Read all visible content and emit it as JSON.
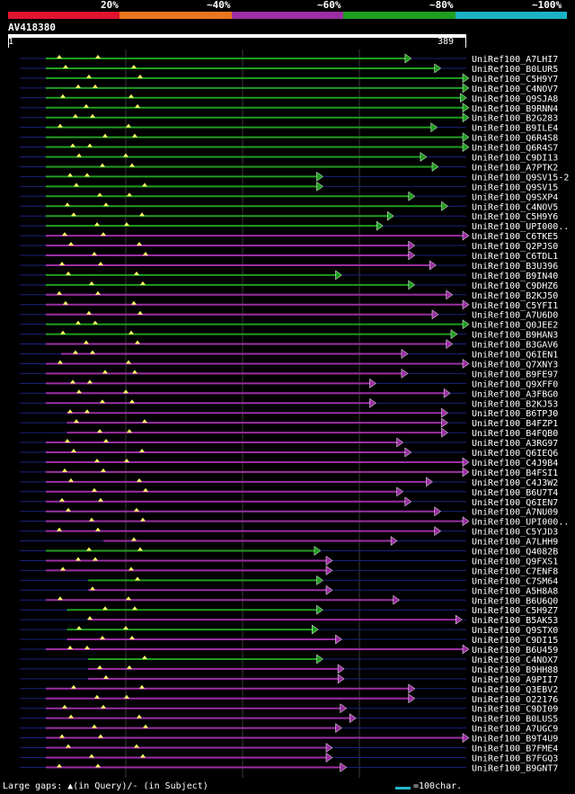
{
  "legend": {
    "labels": [
      "20%",
      "~40%",
      "~60%",
      "~80%",
      "~100%"
    ],
    "colors": [
      "#e0142f",
      "#e8761e",
      "#9b2ea3",
      "#1f9e1f",
      "#1bb3c4"
    ]
  },
  "query": {
    "name": "AV418380",
    "start": "1",
    "end": "389"
  },
  "footer": {
    "gaps_text": "Large gaps: ▲(in Query)/- (in Subject)",
    "scale_text": "=100char."
  },
  "chart_data": {
    "type": "alignment-overview",
    "query_length": 389,
    "colors": {
      "green": "#1f9e1f",
      "purple": "#9b2ea3"
    },
    "hits": [
      {
        "name": "UniRef100_A7LHI7",
        "start": 32,
        "end": 337,
        "color": "green"
      },
      {
        "name": "UniRef100_B0LUR5",
        "start": 32,
        "end": 362,
        "color": "green"
      },
      {
        "name": "UniRef100_C5H9Y7",
        "start": 32,
        "end": 395,
        "color": "green"
      },
      {
        "name": "UniRef100_C4NOV7",
        "start": 32,
        "end": 395,
        "color": "green"
      },
      {
        "name": "UniRef100_Q9SJA8",
        "start": 32,
        "end": 384,
        "color": "green"
      },
      {
        "name": "UniRef100_B9RNN4",
        "start": 32,
        "end": 395,
        "color": "green"
      },
      {
        "name": "UniRef100_B2G283",
        "start": 32,
        "end": 395,
        "color": "green"
      },
      {
        "name": "UniRef100_B9ILE4",
        "start": 32,
        "end": 359,
        "color": "green"
      },
      {
        "name": "UniRef100_Q6R4S8",
        "start": 32,
        "end": 395,
        "color": "green"
      },
      {
        "name": "UniRef100_Q6R4S7",
        "start": 32,
        "end": 395,
        "color": "green"
      },
      {
        "name": "UniRef100_C9DI13",
        "start": 32,
        "end": 350,
        "color": "green"
      },
      {
        "name": "UniRef100_A7PTK2",
        "start": 32,
        "end": 360,
        "color": "green"
      },
      {
        "name": "UniRef100_Q9SV15-2",
        "start": 32,
        "end": 262,
        "color": "green"
      },
      {
        "name": "UniRef100_Q9SV15",
        "start": 32,
        "end": 262,
        "color": "green"
      },
      {
        "name": "UniRef100_Q9SXP4",
        "start": 32,
        "end": 340,
        "color": "green"
      },
      {
        "name": "UniRef100_C4NOV5",
        "start": 32,
        "end": 368,
        "color": "green"
      },
      {
        "name": "UniRef100_C5H9Y6",
        "start": 32,
        "end": 322,
        "color": "green"
      },
      {
        "name": "UniRef100_UPI000..",
        "start": 32,
        "end": 313,
        "color": "green"
      },
      {
        "name": "UniRef100_C6TKE5",
        "start": 32,
        "end": 386,
        "color": "purple"
      },
      {
        "name": "UniRef100_Q2PJS0",
        "start": 32,
        "end": 340,
        "color": "purple"
      },
      {
        "name": "UniRef100_C6TDL1",
        "start": 32,
        "end": 340,
        "color": "purple"
      },
      {
        "name": "UniRef100_B3U396",
        "start": 32,
        "end": 358,
        "color": "purple"
      },
      {
        "name": "UniRef100_B9IN40",
        "start": 32,
        "end": 278,
        "color": "green"
      },
      {
        "name": "UniRef100_C9DHZ6",
        "start": 32,
        "end": 340,
        "color": "green"
      },
      {
        "name": "UniRef100_B2KJ50",
        "start": 32,
        "end": 372,
        "color": "purple"
      },
      {
        "name": "UniRef100_C5YFI1",
        "start": 32,
        "end": 391,
        "color": "purple"
      },
      {
        "name": "UniRef100_A7U6D0",
        "start": 32,
        "end": 360,
        "color": "purple"
      },
      {
        "name": "UniRef100_Q0JEE2",
        "start": 32,
        "end": 388,
        "color": "green"
      },
      {
        "name": "UniRef100_B9HAN3",
        "start": 32,
        "end": 376,
        "color": "green"
      },
      {
        "name": "UniRef100_B3GAV6",
        "start": 32,
        "end": 372,
        "color": "purple"
      },
      {
        "name": "UniRef100_Q6IEN1",
        "start": 45,
        "end": 334,
        "color": "purple"
      },
      {
        "name": "UniRef100_Q7XNY3",
        "start": 32,
        "end": 391,
        "color": "purple"
      },
      {
        "name": "UniRef100_B9FE97",
        "start": 32,
        "end": 334,
        "color": "purple"
      },
      {
        "name": "UniRef100_Q9XFF0",
        "start": 32,
        "end": 307,
        "color": "purple"
      },
      {
        "name": "UniRef100_A3FBG0",
        "start": 32,
        "end": 370,
        "color": "purple"
      },
      {
        "name": "UniRef100_B2KJ53",
        "start": 32,
        "end": 307,
        "color": "purple"
      },
      {
        "name": "UniRef100_B6TPJ0",
        "start": 50,
        "end": 368,
        "color": "purple"
      },
      {
        "name": "UniRef100_B4FZP1",
        "start": 50,
        "end": 368,
        "color": "purple"
      },
      {
        "name": "UniRef100_B4FQB0",
        "start": 50,
        "end": 368,
        "color": "purple"
      },
      {
        "name": "UniRef100_A3RG97",
        "start": 32,
        "end": 330,
        "color": "purple"
      },
      {
        "name": "UniRef100_Q6IEQ6",
        "start": 32,
        "end": 337,
        "color": "purple"
      },
      {
        "name": "UniRef100_C4J9B4",
        "start": 32,
        "end": 393,
        "color": "purple"
      },
      {
        "name": "UniRef100_B4FSI1",
        "start": 32,
        "end": 393,
        "color": "purple"
      },
      {
        "name": "UniRef100_C4J3W2",
        "start": 32,
        "end": 355,
        "color": "purple"
      },
      {
        "name": "UniRef100_B6U7T4",
        "start": 32,
        "end": 330,
        "color": "purple"
      },
      {
        "name": "UniRef100_Q6IEN7",
        "start": 32,
        "end": 337,
        "color": "purple"
      },
      {
        "name": "UniRef100_A7NU09",
        "start": 32,
        "end": 362,
        "color": "purple"
      },
      {
        "name": "UniRef100_UPI000..",
        "start": 32,
        "end": 388,
        "color": "purple"
      },
      {
        "name": "UniRef100_C5YJD3",
        "start": 32,
        "end": 362,
        "color": "purple"
      },
      {
        "name": "UniRef100_A7LHH9",
        "start": 81,
        "end": 325,
        "color": "purple"
      },
      {
        "name": "UniRef100_Q4082B",
        "start": 32,
        "end": 260,
        "color": "green"
      },
      {
        "name": "UniRef100_Q9FXS1",
        "start": 32,
        "end": 270,
        "color": "purple"
      },
      {
        "name": "UniRef100_C7ENF8",
        "start": 32,
        "end": 270,
        "color": "purple"
      },
      {
        "name": "UniRef100_C7SM64",
        "start": 68,
        "end": 262,
        "color": "green"
      },
      {
        "name": "UniRef100_A5H8A8",
        "start": 68,
        "end": 270,
        "color": "purple"
      },
      {
        "name": "UniRef100_B6U6Q0",
        "start": 32,
        "end": 327,
        "color": "purple"
      },
      {
        "name": "UniRef100_C5H9Z7",
        "start": 50,
        "end": 262,
        "color": "green"
      },
      {
        "name": "UniRef100_B5AK53",
        "start": 68,
        "end": 380,
        "color": "purple"
      },
      {
        "name": "UniRef100_Q9STX0",
        "start": 50,
        "end": 258,
        "color": "green"
      },
      {
        "name": "UniRef100_C9DI15",
        "start": 50,
        "end": 278,
        "color": "purple"
      },
      {
        "name": "UniRef100_B6U459",
        "start": 32,
        "end": 393,
        "color": "purple"
      },
      {
        "name": "UniRef100_C4NOX7",
        "start": 68,
        "end": 262,
        "color": "green"
      },
      {
        "name": "UniRef100_B9HH88",
        "start": 68,
        "end": 280,
        "color": "purple"
      },
      {
        "name": "UniRef100_A9PII7",
        "start": 68,
        "end": 280,
        "color": "purple"
      },
      {
        "name": "UniRef100_Q3EBV2",
        "start": 32,
        "end": 340,
        "color": "purple"
      },
      {
        "name": "UniRef100_O22176",
        "start": 32,
        "end": 340,
        "color": "purple"
      },
      {
        "name": "UniRef100_C9DI09",
        "start": 32,
        "end": 282,
        "color": "purple"
      },
      {
        "name": "UniRef100_B0LUS5",
        "start": 32,
        "end": 290,
        "color": "purple"
      },
      {
        "name": "UniRef100_A7UGC9",
        "start": 32,
        "end": 278,
        "color": "purple"
      },
      {
        "name": "UniRef100_B9T4U9",
        "start": 32,
        "end": 395,
        "color": "purple"
      },
      {
        "name": "UniRef100_B7FME4",
        "start": 32,
        "end": 270,
        "color": "purple"
      },
      {
        "name": "UniRef100_B7FGQ3",
        "start": 32,
        "end": 270,
        "color": "purple"
      },
      {
        "name": "UniRef100_B9GNT7",
        "start": 32,
        "end": 282,
        "color": "purple"
      }
    ]
  }
}
